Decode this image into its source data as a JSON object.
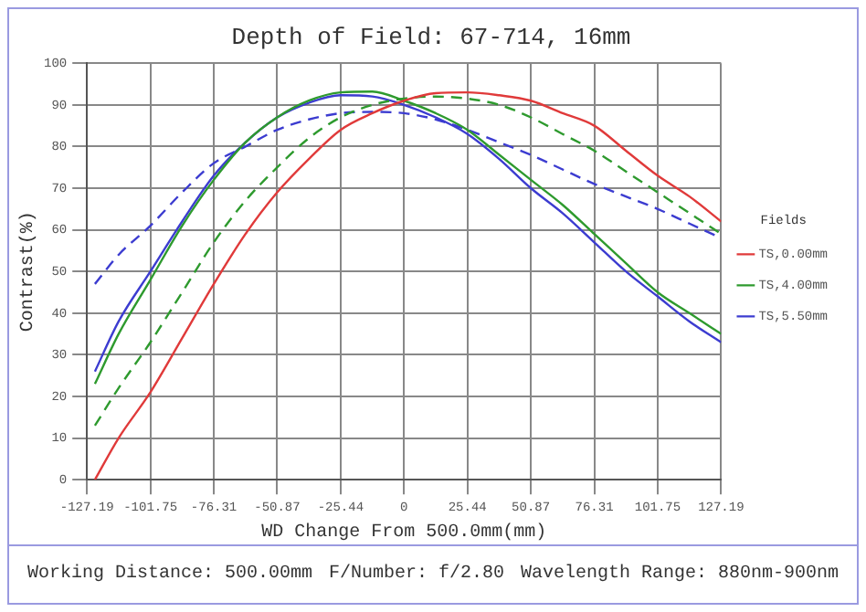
{
  "chart_data": {
    "type": "line",
    "title": "Depth of Field: 67-714, 16mm",
    "xlabel": "WD Change From 500.0mm(mm)",
    "ylabel": "Contrast(%)",
    "legend_title": "Fields",
    "x": [
      -124,
      -114.5,
      -101.75,
      -89,
      -76.31,
      -63.6,
      -50.87,
      -38.2,
      -25.44,
      -12.7,
      0,
      12.7,
      25.44,
      38.2,
      50.87,
      63.6,
      76.31,
      89,
      101.75,
      114.5,
      127.19
    ],
    "series": [
      {
        "name": "TS,0.00mm",
        "color": "#e03a3a",
        "line_style": "solid",
        "values": [
          0,
          10,
          21,
          34,
          47,
          59,
          69,
          77,
          84,
          88,
          91,
          92.8,
          93,
          92.3,
          91,
          88,
          85,
          79,
          73,
          68,
          62
        ]
      },
      {
        "name": "TS,4.00mm",
        "color": "#2e9a2e",
        "line_style": "solid",
        "values": [
          23,
          35,
          48,
          61,
          72,
          81,
          87,
          91,
          93,
          93.2,
          91,
          88,
          84,
          78,
          72,
          66,
          59,
          52,
          45,
          40,
          35
        ]
      },
      {
        "color": "#2e9a2e",
        "line_style": "dashed",
        "values": [
          13,
          22,
          33,
          45,
          57,
          67,
          75,
          82,
          87,
          90,
          91.5,
          92,
          91.5,
          90,
          87,
          83,
          79,
          74,
          69,
          64,
          59
        ]
      },
      {
        "name": "TS,5.50mm",
        "color": "#3c3cd0",
        "line_style": "solid",
        "values": [
          26,
          38,
          50,
          62,
          73,
          81,
          87,
          90.5,
          92.3,
          92,
          90,
          87,
          83,
          77,
          70,
          64,
          57,
          50,
          44,
          38,
          33
        ]
      },
      {
        "color": "#3c3cd0",
        "line_style": "dashed",
        "values": [
          47,
          54,
          61,
          69,
          76,
          80,
          84,
          86.5,
          88,
          88.3,
          88,
          86.5,
          84,
          81,
          78,
          74.5,
          71,
          68,
          65,
          61.5,
          58
        ]
      }
    ],
    "xlim": [
      -127.19,
      127.19
    ],
    "xticks": [
      -127.19,
      -101.75,
      -76.31,
      -50.87,
      -25.44,
      0,
      25.44,
      50.87,
      76.31,
      101.75,
      127.19
    ],
    "ylim": [
      0,
      100
    ],
    "yticks": [
      0,
      10,
      20,
      30,
      40,
      50,
      60,
      70,
      80,
      90,
      100
    ],
    "grid": true,
    "legend": "right",
    "marker": "none",
    "annotations": [
      "Working Distance: 500.00mm",
      "F/Number: f/2.80",
      "Wavelength Range: 880nm-900nm"
    ]
  }
}
